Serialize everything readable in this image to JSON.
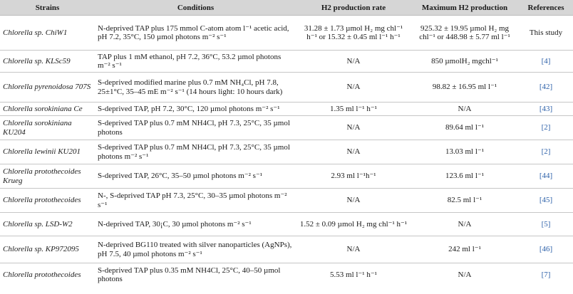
{
  "headers": {
    "strains": "Strains",
    "conditions": "Conditions",
    "rate": "H2 production rate",
    "max": "Maximum H2 production",
    "references": "References"
  },
  "rows": [
    {
      "strain": "Chlorella sp. ChiW1",
      "conditions": "N-deprived TAP plus 175 mmol C-atom atom l⁻¹ acetic acid, pH 7.2, 35°C, 150 µmol photons m⁻² s⁻¹",
      "rate": "31.28 ± 1.73 µmol H₂ mg chl⁻¹ h⁻¹ or 15.32 ± 0.45 ml l⁻¹ h⁻¹",
      "max": "925.32 ± 19.95 µmol H₂ mg chl⁻¹ or 448.98 ± 5.77 ml l⁻¹",
      "ref": "This study"
    },
    {
      "strain": "Chlorella sp. KLSc59",
      "conditions": "TAP plus 1 mM ethanol, pH 7.2, 36°C, 53.2 µmol photons m⁻² s⁻¹",
      "rate": "N/A",
      "max": "850 µmolH₂ mgchl⁻¹",
      "ref": "[4]"
    },
    {
      "strain": "Chlorella pyrenoidosa 707S",
      "conditions": "S-deprived modified marine plus 0.7 mM NH₄Cl, pH 7.8, 25±1°C, 35–45 mE m⁻² s⁻¹ (14 hours light: 10 hours dark)",
      "rate": "N/A",
      "max": "98.82 ± 16.95 ml l⁻¹",
      "ref": "[42]"
    },
    {
      "strain": "Chlorella sorokiniana Ce",
      "conditions": "S-deprived TAP, pH 7.2, 30°C, 120 µmol photons m⁻² s⁻¹",
      "rate": "1.35 ml l⁻¹ h⁻¹",
      "max": "N/A",
      "ref": "[43]"
    },
    {
      "strain": "Chlorella sorokiniana KU204",
      "conditions": "S-deprived TAP plus 0.7 mM NH4Cl, pH 7.3, 25°C, 35 µmol photons",
      "rate": "N/A",
      "max": "89.64 ml l⁻¹",
      "ref": "[2]"
    },
    {
      "strain": "Chlorella lewinii KU201",
      "conditions": "S-deprived TAP plus 0.7 mM NH4Cl, pH 7.3, 25°C, 35 µmol photons m⁻² s⁻¹",
      "rate": "N/A",
      "max": "13.03 ml l⁻¹",
      "ref": "[2]"
    },
    {
      "strain": "Chlorella protothecoides Krueg",
      "conditions": "S-deprived TAP, 26°C, 35–50 µmol photons m⁻² s⁻¹",
      "rate": "2.93 ml l⁻¹h⁻¹",
      "max": "123.6 ml l⁻¹",
      "ref": "[44]"
    },
    {
      "strain": "Chlorella protothecoides",
      "conditions": "N-, S-deprived TAP pH 7.3, 25°C, 30–35 µmol photons m⁻² s⁻¹",
      "rate": "N/A",
      "max": "82.5 ml l⁻¹",
      "ref": "[45]"
    },
    {
      "strain": "Chlorella sp. LSD-W2",
      "conditions": "N-deprived TAP, 30¡C, 30 µmol photons m⁻² s⁻¹",
      "rate": "1.52 ± 0.09 µmol H₂ mg chl⁻¹ h⁻¹",
      "max": "N/A",
      "ref": "[5]"
    },
    {
      "strain": "Chlorella sp. KP972095",
      "conditions": "N-deprived BG110 treated with silver nanoparticles (AgNPs), pH 7.5, 40 µmol photons m⁻² s⁻¹",
      "rate": "N/A",
      "max": "242 ml l⁻¹",
      "ref": "[46]"
    },
    {
      "strain": "Chlorella protothecoides",
      "conditions": "S-deprived TAP plus 0.35 mM NH4Cl, 25°C, 40–50 µmol photons",
      "rate": "5.53 ml l⁻¹ h⁻¹",
      "max": "N/A",
      "ref": "[7]"
    }
  ]
}
